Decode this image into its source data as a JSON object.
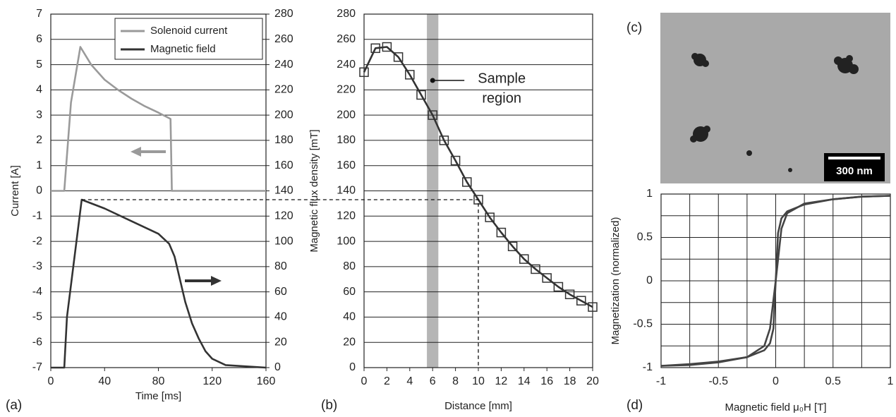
{
  "chart_data": [
    {
      "type": "line",
      "label": "(a)",
      "xlabel": "Time [ms]",
      "ylabel": "Current [A]",
      "xlim": [
        0,
        160
      ],
      "xticks": [
        0,
        40,
        80,
        120,
        160
      ],
      "ylim": [
        -7,
        7
      ],
      "yticks": [
        -7,
        -6,
        -5,
        -4,
        -3,
        -2,
        -1,
        0,
        1,
        2,
        3,
        4,
        5,
        6,
        7
      ],
      "y2lim": [
        0,
        280
      ],
      "y2ticks": [
        0,
        20,
        40,
        60,
        80,
        100,
        120,
        140,
        160,
        180,
        200,
        220,
        240,
        260,
        280
      ],
      "grid": true,
      "legend": "upper right",
      "series": [
        {
          "name": "Solenoid current",
          "color": "#9a9a9a",
          "x": [
            0,
            10,
            15,
            22,
            30,
            40,
            50,
            60,
            70,
            80,
            89,
            90,
            100,
            160
          ],
          "values": [
            0,
            0,
            3.5,
            5.7,
            5.0,
            4.4,
            4.0,
            3.65,
            3.35,
            3.1,
            2.85,
            0,
            0,
            0
          ]
        },
        {
          "name": "Magnetic field",
          "color": "#333333",
          "axis": "y2",
          "x": [
            0,
            10,
            12,
            23,
            40,
            60,
            80,
            88,
            92,
            96,
            100,
            105,
            110,
            115,
            120,
            130,
            160
          ],
          "values": [
            0,
            0,
            40,
            133,
            126,
            116,
            106,
            98,
            88,
            70,
            52,
            35,
            23,
            13,
            7,
            2,
            0
          ]
        }
      ]
    },
    {
      "type": "scatter",
      "label": "(b)",
      "xlabel": "Distance [mm]",
      "ylabel": "Magnetic flux density [mT]",
      "xlim": [
        0,
        20
      ],
      "xticks": [
        0,
        2,
        4,
        6,
        8,
        10,
        12,
        14,
        16,
        18,
        20
      ],
      "ylim": [
        0,
        280
      ],
      "yticks": [
        0,
        20,
        40,
        60,
        80,
        100,
        120,
        140,
        160,
        180,
        200,
        220,
        240,
        260,
        280
      ],
      "grid": true,
      "highlight": [
        5.5,
        6.5
      ],
      "annotation": [
        "Sample",
        "region"
      ],
      "series": [
        {
          "color": "#333333",
          "marker": "square",
          "line": true,
          "x": [
            0,
            1,
            2,
            3,
            4,
            5,
            6,
            7,
            8,
            9,
            10,
            11,
            12,
            13,
            14,
            15,
            16,
            17,
            18,
            19,
            20
          ],
          "values": [
            234,
            253,
            254,
            246,
            232,
            216,
            200,
            180,
            164,
            147,
            133,
            119,
            107,
            96,
            86,
            78,
            71,
            64,
            58,
            53,
            48
          ]
        }
      ]
    },
    {
      "type": "image",
      "label": "(c)",
      "scale_bar": "300 nm"
    },
    {
      "type": "line",
      "label": "(d)",
      "xlabel": "Magnetic field μ₀H [T]",
      "ylabel": "Magnetization  (normalized)",
      "xlim": [
        -1,
        1
      ],
      "xticks": [
        -1,
        -0.5,
        0,
        0.5,
        1
      ],
      "ylim": [
        -1,
        1
      ],
      "yticks": [
        -1,
        -0.5,
        0,
        0.5,
        1
      ],
      "xminor": [
        -0.75,
        -0.25,
        0.25,
        0.75
      ],
      "yminor": [
        -0.75,
        -0.25,
        0.25,
        0.75
      ],
      "grid": true,
      "series": [
        {
          "color": "#444444",
          "x": [
            -1,
            -0.75,
            -0.5,
            -0.25,
            -0.1,
            -0.05,
            0,
            0.02,
            0.05,
            0.1,
            0.25,
            0.5,
            0.75,
            1
          ],
          "values": [
            -0.98,
            -0.96,
            -0.93,
            -0.88,
            -0.75,
            -0.55,
            0,
            0.55,
            0.72,
            0.8,
            0.88,
            0.94,
            0.97,
            0.98
          ]
        },
        {
          "color": "#444444",
          "x": [
            1,
            0.75,
            0.5,
            0.25,
            0.1,
            0.05,
            0,
            -0.02,
            -0.05,
            -0.1,
            -0.25,
            -0.5,
            -0.75,
            -1
          ],
          "values": [
            0.98,
            0.97,
            0.94,
            0.89,
            0.78,
            0.6,
            0,
            -0.55,
            -0.72,
            -0.8,
            -0.88,
            -0.94,
            -0.97,
            -0.98
          ]
        }
      ]
    }
  ]
}
